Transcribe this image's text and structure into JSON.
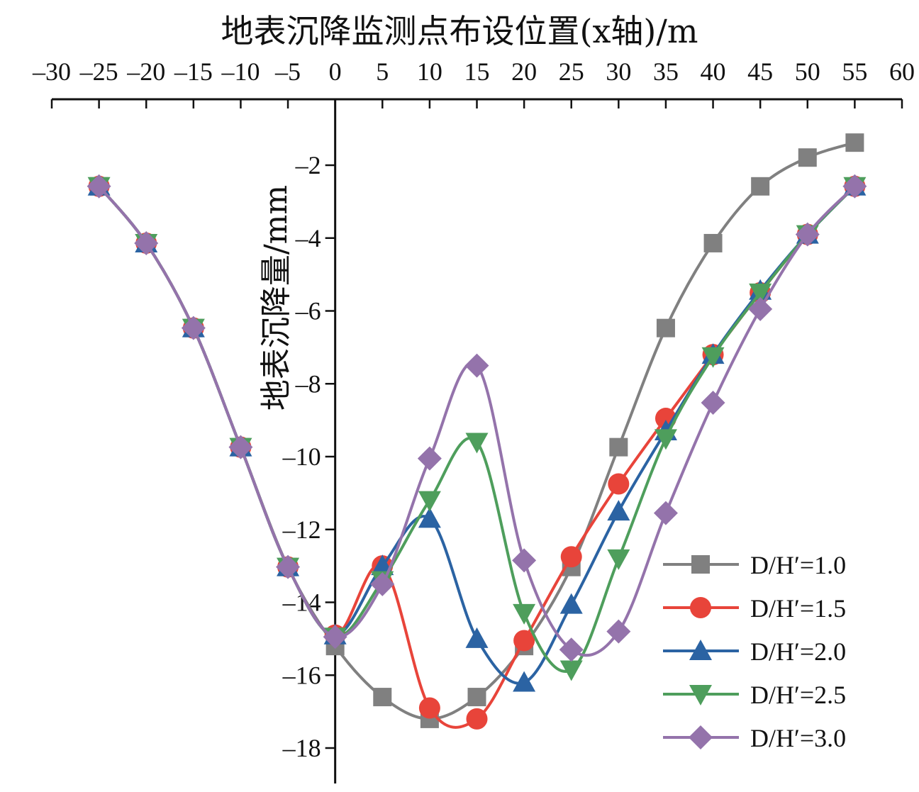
{
  "chart_data": {
    "type": "line",
    "title": "",
    "xlabel": "地表沉降监测点布设位置(x轴)/m",
    "ylabel": "地表沉降量/mm",
    "xlim": [
      -30,
      60
    ],
    "ylim": [
      -19,
      -1
    ],
    "x_position": "top",
    "xticks": [
      -30,
      -25,
      -20,
      -15,
      -10,
      -5,
      0,
      5,
      10,
      15,
      20,
      25,
      30,
      35,
      40,
      45,
      50,
      55,
      60
    ],
    "yticks": [
      -2,
      -4,
      -6,
      -8,
      -10,
      -12,
      -14,
      -16,
      -18
    ],
    "legend_position": "bottom-right",
    "grid": false,
    "x": [
      -25,
      -20,
      -15,
      -10,
      -5,
      0,
      5,
      10,
      15,
      20,
      25,
      30,
      35,
      40,
      45,
      50,
      55
    ],
    "series": [
      {
        "name": "D/H′=1.0",
        "marker": "square",
        "color": "#808080",
        "values": [
          -2.58,
          -4.14,
          -6.47,
          -9.74,
          -13.03,
          -15.2,
          -16.6,
          -17.2,
          -16.6,
          -15.2,
          -13.03,
          -9.74,
          -6.47,
          -4.14,
          -2.58,
          -1.79,
          -1.38
        ]
      },
      {
        "name": "D/H′=1.5",
        "marker": "circle",
        "color": "#e8443a",
        "values": [
          -2.58,
          -4.14,
          -6.47,
          -9.74,
          -13.03,
          -14.9,
          -13.0,
          -16.9,
          -17.2,
          -15.05,
          -12.75,
          -10.75,
          -8.95,
          -7.2,
          -5.5,
          -3.9,
          -2.58
        ]
      },
      {
        "name": "D/H′=2.0",
        "marker": "triangle-up",
        "color": "#2b63a3",
        "values": [
          -2.58,
          -4.14,
          -6.47,
          -9.74,
          -13.03,
          -14.9,
          -13.0,
          -11.7,
          -15.0,
          -16.2,
          -14.06,
          -11.5,
          -9.3,
          -7.2,
          -5.44,
          -3.9,
          -2.58
        ]
      },
      {
        "name": "D/H′=2.5",
        "marker": "triangle-down",
        "color": "#4e9e5c",
        "values": [
          -2.58,
          -4.14,
          -6.47,
          -9.74,
          -13.03,
          -14.95,
          -13.4,
          -11.2,
          -9.6,
          -14.3,
          -15.85,
          -12.8,
          -9.5,
          -7.25,
          -5.5,
          -3.9,
          -2.58
        ]
      },
      {
        "name": "D/H′=3.0",
        "marker": "diamond",
        "color": "#9473ab",
        "values": [
          -2.58,
          -4.14,
          -6.47,
          -9.74,
          -13.03,
          -14.95,
          -13.5,
          -10.05,
          -7.5,
          -12.85,
          -15.3,
          -14.8,
          -11.55,
          -8.52,
          -5.95,
          -3.9,
          -2.58
        ]
      }
    ]
  }
}
